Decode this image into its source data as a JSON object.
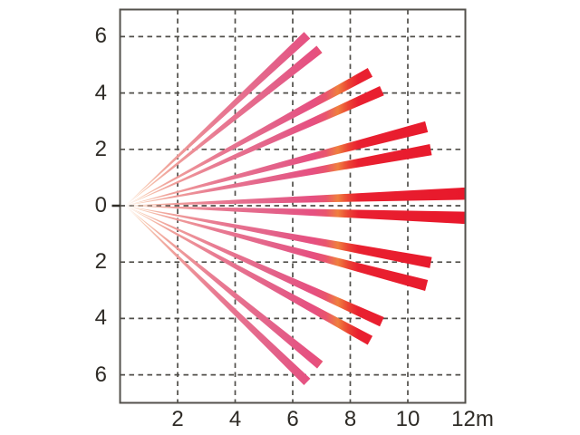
{
  "chart_data": {
    "type": "beam_fan",
    "description": "Detection coverage pattern: 14 narrow wedge-shaped beams fanning out from an origin at the left-center of the plot, symmetrical about the horizontal axis",
    "x_axis": {
      "unit": "m",
      "range": [
        0,
        12
      ],
      "ticks": [
        {
          "value": 2,
          "label": "2",
          "gridline": true
        },
        {
          "value": 4,
          "label": "4",
          "gridline": true
        },
        {
          "value": 6,
          "label": "6",
          "gridline": true
        },
        {
          "value": 8,
          "label": "8",
          "gridline": true
        },
        {
          "value": 10,
          "label": "10",
          "gridline": true
        },
        {
          "value": 12,
          "label": "12m",
          "gridline": false
        }
      ]
    },
    "y_axis": {
      "unit": "m",
      "range": [
        -7,
        7
      ],
      "ticks": [
        {
          "value": 6,
          "label": "6"
        },
        {
          "value": 4,
          "label": "4"
        },
        {
          "value": 2,
          "label": "2"
        },
        {
          "value": 0,
          "label": "0"
        },
        {
          "value": -2,
          "label": "2"
        },
        {
          "value": -4,
          "label": "4"
        },
        {
          "value": -6,
          "label": "6"
        }
      ]
    },
    "origin": {
      "x_m": 0.18,
      "y_m": 0
    },
    "beam_half_width_ratio": 0.018,
    "beams": [
      {
        "tip_x_m": 6.5,
        "tip_y_m": 6.05
      },
      {
        "tip_x_m": 6.93,
        "tip_y_m": 5.55
      },
      {
        "tip_x_m": 8.69,
        "tip_y_m": 4.73
      },
      {
        "tip_x_m": 9.1,
        "tip_y_m": 4.08
      },
      {
        "tip_x_m": 10.65,
        "tip_y_m": 2.8
      },
      {
        "tip_x_m": 10.8,
        "tip_y_m": 1.99
      },
      {
        "tip_x_m": 12.0,
        "tip_y_m": 0.43
      },
      {
        "tip_x_m": 12.0,
        "tip_y_m": -0.43
      },
      {
        "tip_x_m": 10.8,
        "tip_y_m": -2.02
      },
      {
        "tip_x_m": 10.65,
        "tip_y_m": -2.83
      },
      {
        "tip_x_m": 9.1,
        "tip_y_m": -4.12
      },
      {
        "tip_x_m": 8.69,
        "tip_y_m": -4.78
      },
      {
        "tip_x_m": 6.95,
        "tip_y_m": -5.65
      },
      {
        "tip_x_m": 6.5,
        "tip_y_m": -6.25
      }
    ],
    "style": {
      "beam_gradient_stops": [
        {
          "offset": 0.0,
          "color": "#fdf3ec"
        },
        {
          "offset": 0.045,
          "color": "#f8cdb5"
        },
        {
          "offset": 0.13,
          "color": "#f0a29b"
        },
        {
          "offset": 0.27,
          "color": "#e87a92"
        },
        {
          "offset": 0.44,
          "color": "#e36189"
        },
        {
          "offset": 0.555,
          "color": "#e64f80"
        },
        {
          "offset": 0.59,
          "color": "#e9556e"
        },
        {
          "offset": 0.625,
          "color": "#ef7f3e"
        },
        {
          "offset": 0.655,
          "color": "#eb4434"
        },
        {
          "offset": 0.685,
          "color": "#e92030"
        },
        {
          "offset": 1.0,
          "color": "#e8182b"
        }
      ],
      "grid_color": "#514f4a",
      "border_color": "#54524d",
      "text_color": "#2e2b26",
      "background": "#ffffff"
    }
  }
}
